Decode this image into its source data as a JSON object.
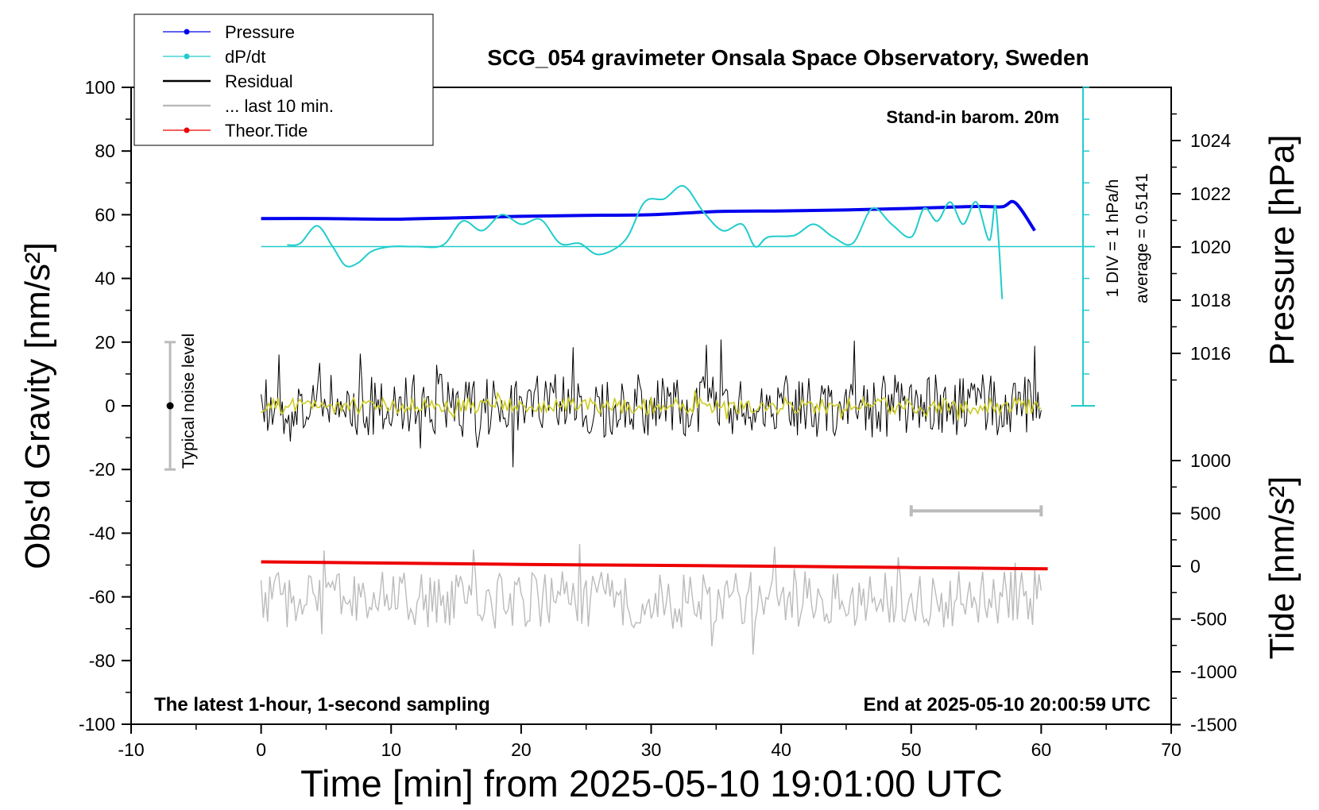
{
  "chart_data": {
    "type": "line",
    "title": "SCG_054 gravimeter Onsala Space Observatory, Sweden",
    "xlabel": "Time [min] from 2025-05-10 19:01:00 UTC",
    "ylabel": "Obs'd Gravity [nm/s²]",
    "ylabel_pressure": "Pressure [hPa]",
    "ylabel_tide": "Tide [nm/s²]",
    "xlim": [
      -10,
      70
    ],
    "ylim": [
      -100,
      100
    ],
    "x_ticks": [
      "-10",
      "0",
      "10",
      "20",
      "30",
      "40",
      "50",
      "60",
      "70"
    ],
    "y_ticks": [
      "100",
      "80",
      "60",
      "40",
      "20",
      "0",
      "-20",
      "-40",
      "-60",
      "-80",
      "-100"
    ],
    "pressure_ticks": [
      "1024",
      "1022",
      "1020",
      "1018",
      "1016"
    ],
    "tide_ticks": [
      "1000",
      "500",
      "0",
      "-500",
      "-1000",
      "-1500"
    ],
    "pressure_ylim": [
      1014,
      1026
    ],
    "tide_ylim": [
      -1500,
      1500
    ],
    "grid": false,
    "legend_position": "top-left",
    "legend": [
      {
        "label": "Pressure",
        "color": "#0000ee"
      },
      {
        "label": "dP/dt",
        "color": "#22cccc"
      },
      {
        "label": "Residual",
        "color": "#000000"
      },
      {
        "label": "... last 10 min.",
        "color": "#bbbbbb"
      },
      {
        "label": "Theor.Tide",
        "color": "#ee0000"
      }
    ],
    "annotations": {
      "barometer": "Stand-in barom. 20m",
      "div": "1 DIV = 1 hPa/h",
      "average": "average = 0.5141",
      "noise": "Typical noise level",
      "latest": "The latest 1-hour, 1-second sampling",
      "end": "End at 2025-05-10 20:00:59 UTC"
    },
    "noise_bar": {
      "x": -7,
      "ymin": -20,
      "ymax": 20
    },
    "last10_bar": {
      "xmin": 50,
      "xmax": 60,
      "y": -33
    },
    "series": [
      {
        "name": "Pressure",
        "color": "#0000ee",
        "x": [
          0,
          5,
          10,
          15,
          20,
          25,
          30,
          35,
          40,
          45,
          50,
          55,
          57,
          58,
          59.5
        ],
        "y": [
          58.8,
          58.8,
          58.6,
          59,
          59.5,
          59.8,
          60,
          61,
          61.2,
          61.5,
          62,
          62.6,
          62.5,
          63.8,
          55
        ]
      },
      {
        "name": "dP/dt",
        "color": "#22cccc",
        "x": [
          2,
          3,
          4.3,
          5.5,
          6.5,
          7.5,
          8.5,
          10,
          12,
          14,
          15.5,
          17,
          18.5,
          20,
          21.5,
          23,
          24.5,
          26,
          28,
          29.5,
          31,
          32.5,
          34,
          35.5,
          37,
          38,
          39,
          41,
          42.5,
          44,
          45.5,
          47,
          48.5,
          50,
          51,
          52,
          53,
          54,
          55,
          56,
          56.5,
          57
        ],
        "y": [
          50.5,
          51,
          56.5,
          50,
          44,
          45,
          48.5,
          50,
          50,
          50.5,
          58,
          55,
          60,
          57,
          58.5,
          51,
          51,
          47.5,
          52,
          64,
          65,
          69,
          61,
          55,
          57,
          50,
          53,
          53.5,
          57,
          53,
          51,
          62,
          57,
          53,
          62,
          58,
          64,
          57,
          64,
          52,
          62.5,
          33.5
        ]
      },
      {
        "name": "Theor.Tide",
        "color": "#ee0000",
        "x": [
          0,
          10,
          20,
          30,
          40,
          50,
          60.5
        ],
        "y": [
          -49,
          -49.4,
          -49.8,
          -50.1,
          -50.4,
          -50.8,
          -51.2
        ]
      }
    ],
    "residual": {
      "color": "#000000",
      "xrange": [
        0,
        60
      ],
      "samples": 480,
      "amplitude": 10,
      "center": 0
    },
    "residual_smooth": {
      "color": "#cccc22",
      "xrange": [
        0,
        60
      ],
      "samples": 320,
      "amplitude": 2.5,
      "center": 0
    },
    "last10": {
      "color": "#bbbbbb",
      "xrange": [
        0,
        60
      ],
      "samples": 360,
      "amplitude": 9,
      "center": -61
    }
  }
}
